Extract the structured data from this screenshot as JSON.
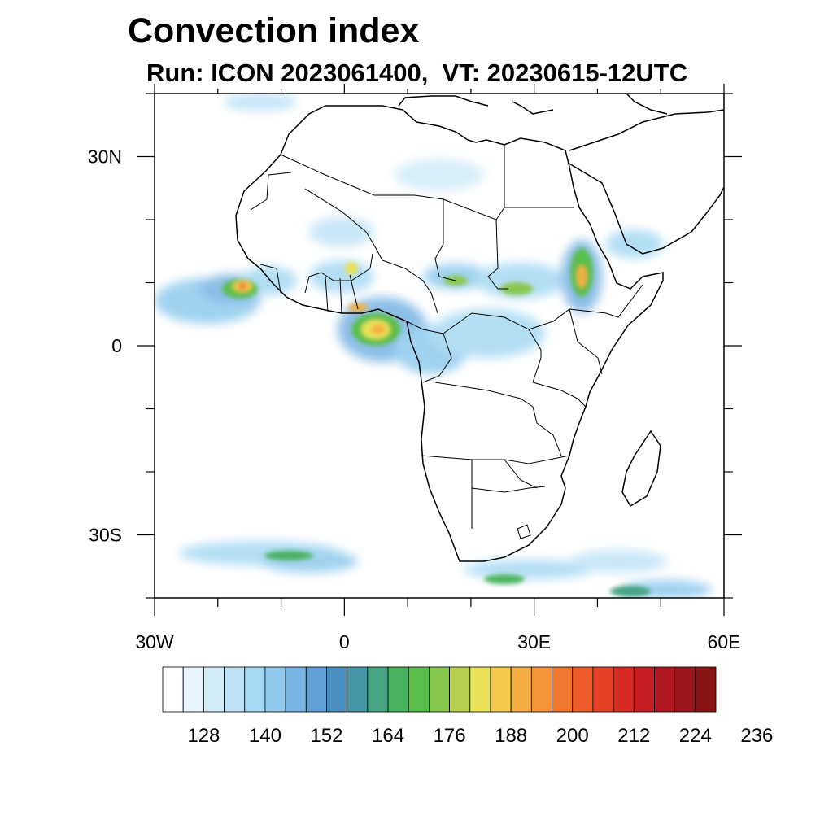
{
  "title": "Convection index",
  "subtitle": "Run: ICON 2023061400,  VT: 20230615-12UTC",
  "map": {
    "lon_range": [
      -30,
      60
    ],
    "lat_range": [
      -40,
      40
    ],
    "x_ticks": [
      {
        "lon": -30,
        "label": "30W"
      },
      {
        "lon": 0,
        "label": "0"
      },
      {
        "lon": 30,
        "label": "30E"
      },
      {
        "lon": 60,
        "label": "60E"
      }
    ],
    "y_ticks": [
      {
        "lat": 30,
        "label": "30N"
      },
      {
        "lat": 0,
        "label": "0"
      },
      {
        "lat": -30,
        "label": "30S"
      }
    ],
    "minor_lon_step": 10,
    "minor_lat_step": 10
  },
  "colorbar": {
    "colors": [
      "#ffffff",
      "#e9f5fc",
      "#d2ecf8",
      "#bfe3f6",
      "#a6d9f3",
      "#8fcaee",
      "#78b4e3",
      "#5f9fd6",
      "#4a8fc0",
      "#4596a6",
      "#46a583",
      "#48b25f",
      "#5abe4c",
      "#88c74d",
      "#b7d04f",
      "#e8e25a",
      "#f4c94e",
      "#f6ad43",
      "#f59438",
      "#f0772f",
      "#ec5c2a",
      "#e34227",
      "#d82a25",
      "#c61e24",
      "#b01820",
      "#9b151c",
      "#871514"
    ],
    "labels": [
      "128",
      "140",
      "152",
      "164",
      "176",
      "188",
      "200",
      "212",
      "224",
      "236"
    ],
    "label_positions": [
      2,
      5,
      8,
      11,
      14,
      17,
      20,
      23,
      26,
      29
    ]
  }
}
